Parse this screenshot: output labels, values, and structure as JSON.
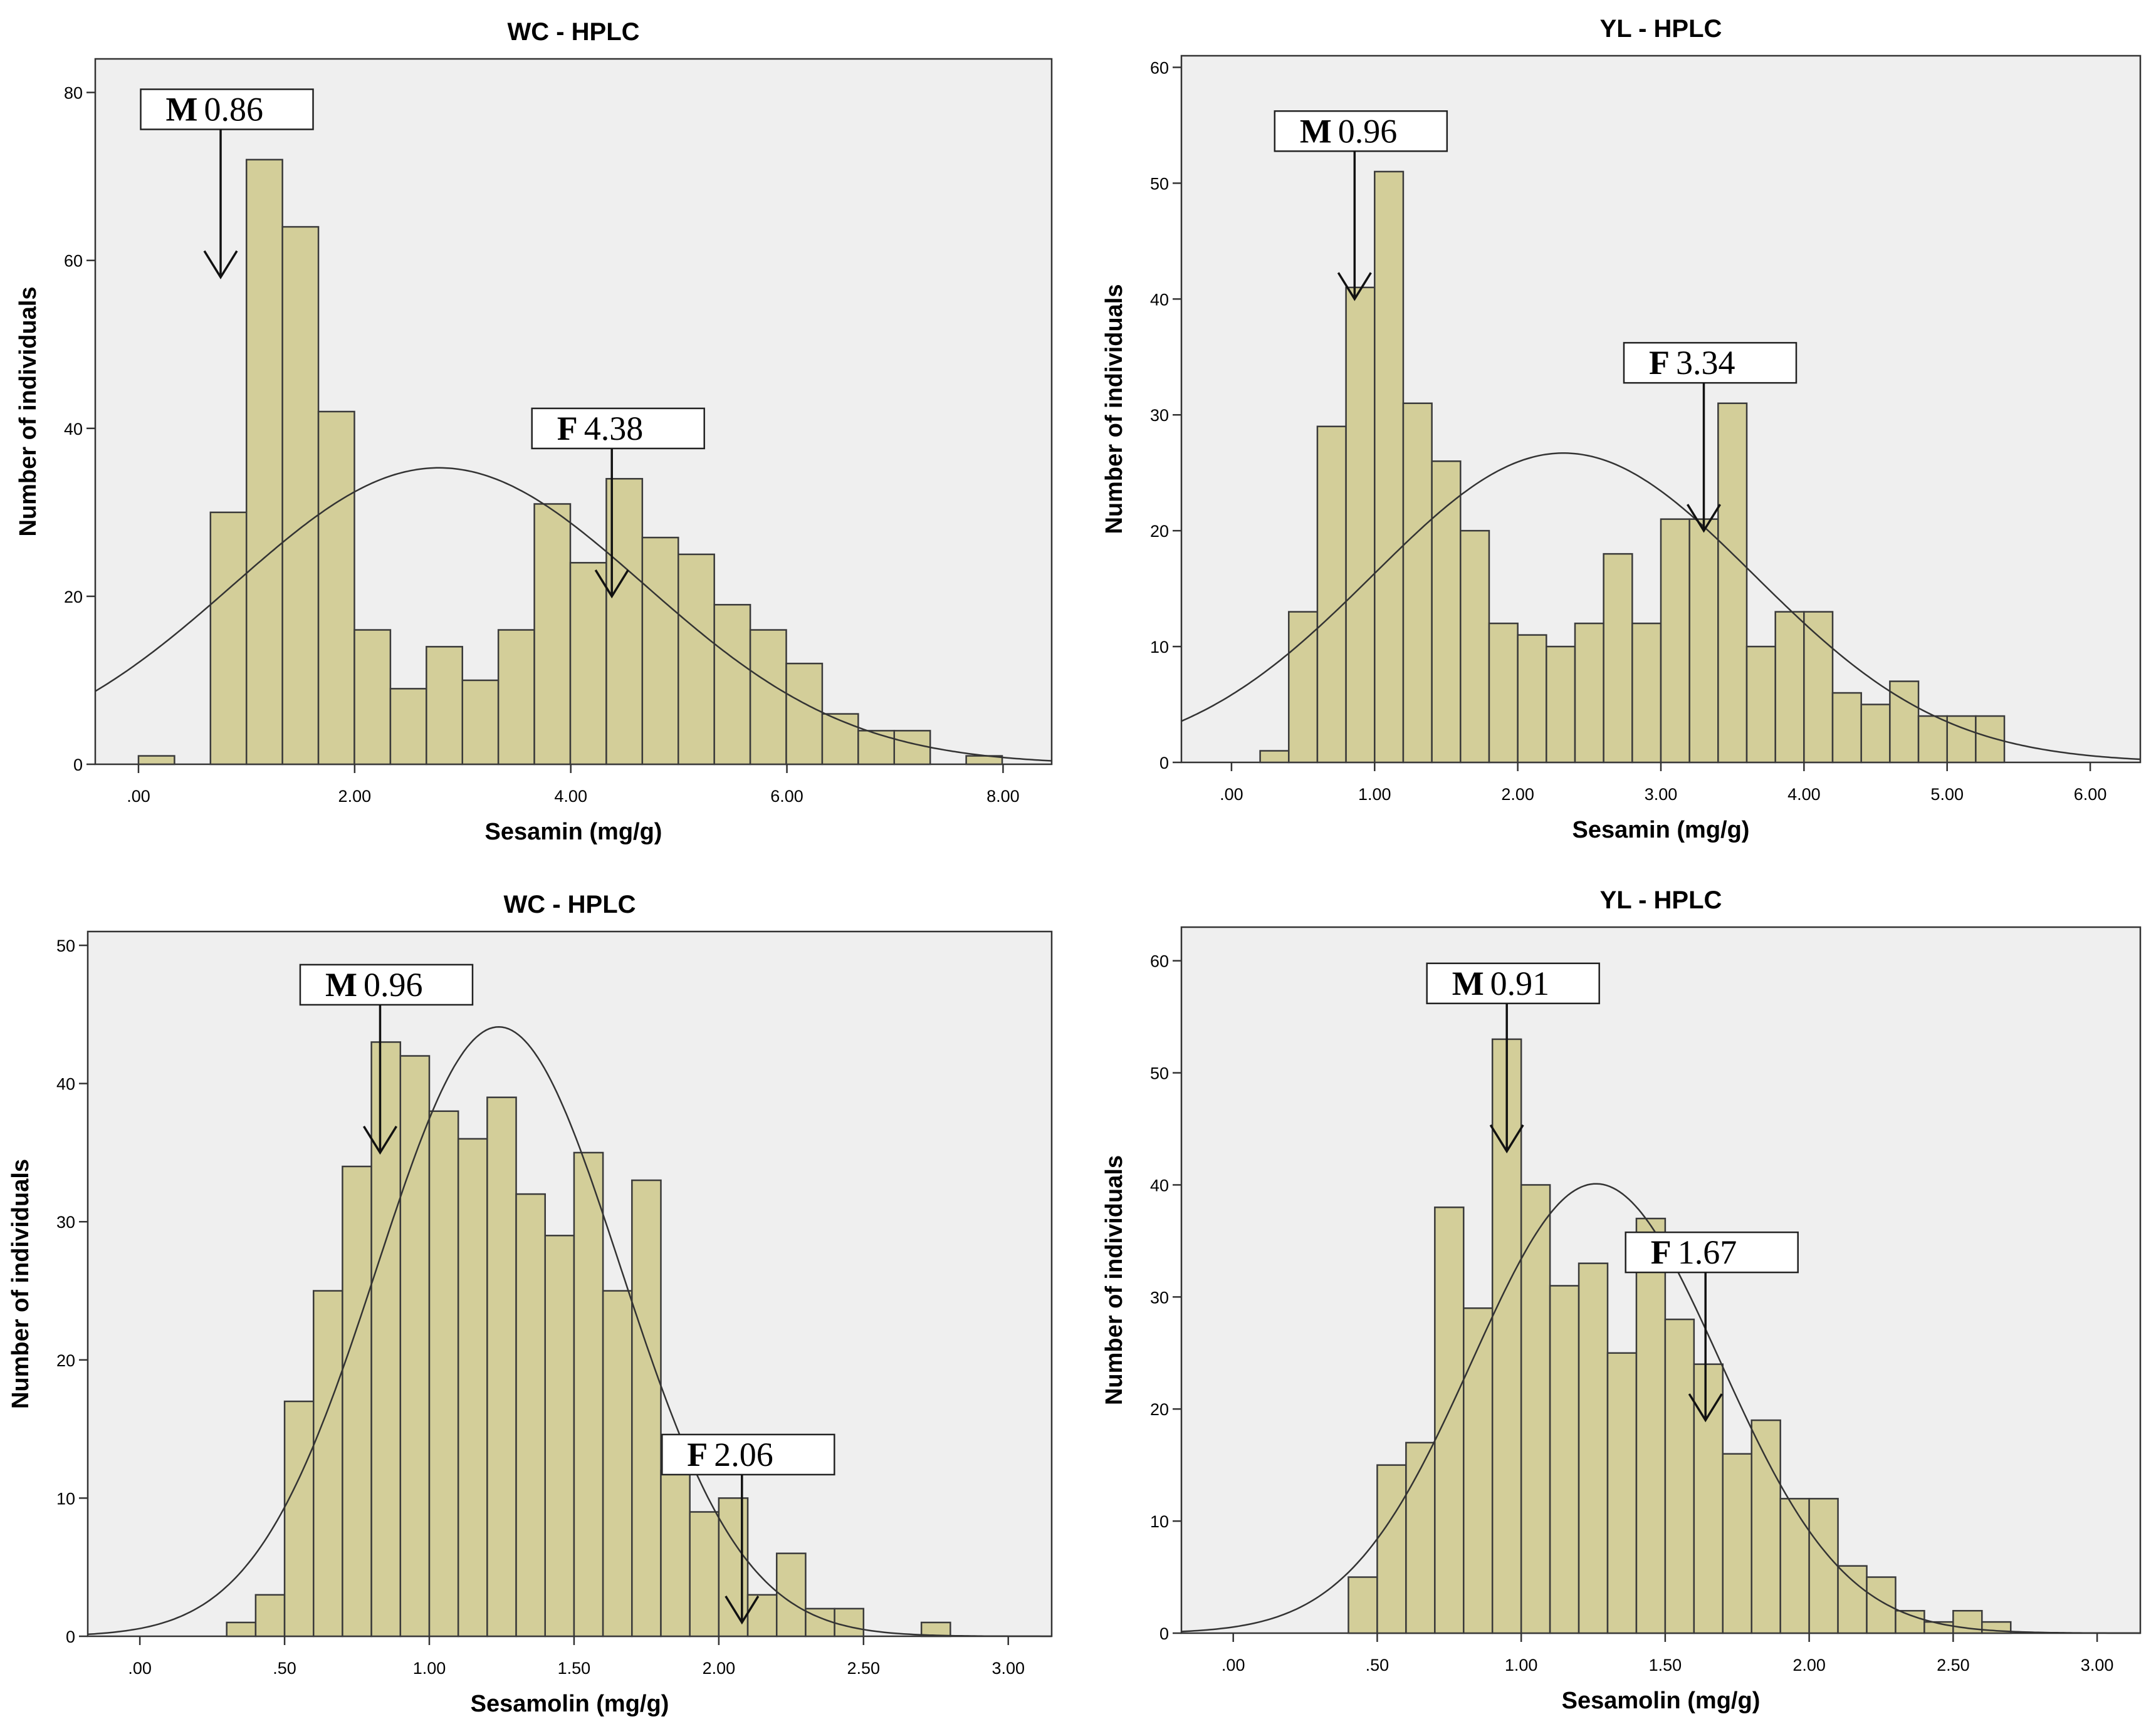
{
  "chart_data": [
    {
      "type": "bar",
      "subtype": "histogram_with_normal_curve",
      "title": "WC - HPLC",
      "xlabel": "Sesamin (mg/g)",
      "ylabel": "Number of individuals",
      "xlim": [
        -0.4,
        8.45
      ],
      "ylim": [
        0,
        84
      ],
      "xticks": [
        0,
        2,
        4,
        6,
        8
      ],
      "xtick_labels": [
        ".00",
        "2.00",
        "4.00",
        "6.00",
        "8.00"
      ],
      "yticks": [
        0,
        20,
        40,
        60,
        80
      ],
      "ytick_labels": [
        "0",
        "20",
        "40",
        "60",
        "80"
      ],
      "bin_start": 0.0,
      "bin_width": 0.333,
      "values": [
        1,
        0,
        30,
        72,
        64,
        42,
        16,
        9,
        14,
        10,
        16,
        31,
        24,
        34,
        27,
        25,
        19,
        16,
        12,
        6,
        4,
        4,
        0,
        1
      ],
      "normal_curve": {
        "mean": 2.78,
        "sd": 1.9,
        "peak": 35.3
      },
      "annotations": [
        {
          "letter": "M",
          "value": "0.86",
          "arrow_x": 0.76,
          "arrow_y": 58
        },
        {
          "letter": "F",
          "value": "4.38",
          "arrow_x": 4.38,
          "arrow_y": 20
        }
      ]
    },
    {
      "type": "bar",
      "subtype": "histogram_with_normal_curve",
      "title": "YL - HPLC",
      "xlabel": "Sesamin (mg/g)",
      "ylabel": "Number of individuals",
      "xlim": [
        -0.35,
        6.35
      ],
      "ylim": [
        0,
        61
      ],
      "xticks": [
        0,
        1,
        2,
        3,
        4,
        5,
        6
      ],
      "xtick_labels": [
        ".00",
        "1.00",
        "2.00",
        "3.00",
        "4.00",
        "5.00",
        "6.00"
      ],
      "yticks": [
        0,
        10,
        20,
        30,
        40,
        50,
        60
      ],
      "ytick_labels": [
        "0",
        "10",
        "20",
        "30",
        "40",
        "50",
        "60"
      ],
      "bin_start": 0.2,
      "bin_width": 0.2,
      "values": [
        1,
        13,
        29,
        41,
        51,
        31,
        26,
        20,
        12,
        11,
        10,
        12,
        18,
        12,
        21,
        21,
        31,
        10,
        13,
        13,
        6,
        5,
        7,
        4,
        4,
        4
      ],
      "normal_curve": {
        "mean": 2.32,
        "sd": 1.33,
        "peak": 26.7
      },
      "annotations": [
        {
          "letter": "M",
          "value": "0.96",
          "arrow_x": 0.86,
          "arrow_y": 40
        },
        {
          "letter": "F",
          "value": "3.34",
          "arrow_x": 3.3,
          "arrow_y": 20
        }
      ]
    },
    {
      "type": "bar",
      "subtype": "histogram_with_normal_curve",
      "title": "WC - HPLC",
      "xlabel": "Sesamolin (mg/g)",
      "ylabel": "Number of individuals",
      "xlim": [
        -0.18,
        3.15
      ],
      "ylim": [
        0,
        51
      ],
      "xticks": [
        0,
        0.5,
        1,
        1.5,
        2,
        2.5,
        3
      ],
      "xtick_labels": [
        ".00",
        ".50",
        "1.00",
        "1.50",
        "2.00",
        "2.50",
        "3.00"
      ],
      "yticks": [
        0,
        10,
        20,
        30,
        40,
        50
      ],
      "ytick_labels": [
        "0",
        "10",
        "20",
        "30",
        "40",
        "50"
      ],
      "bin_start": 0.3,
      "bin_width": 0.1,
      "values": [
        1,
        3,
        17,
        25,
        34,
        43,
        42,
        38,
        36,
        39,
        32,
        29,
        35,
        25,
        33,
        12,
        9,
        10,
        3,
        6,
        2,
        2,
        0,
        0,
        1
      ],
      "normal_curve": {
        "mean": 1.24,
        "sd": 0.42,
        "peak": 44.1
      },
      "annotations": [
        {
          "letter": "M",
          "value": "0.96",
          "arrow_x": 0.83,
          "arrow_y": 35
        },
        {
          "letter": "F",
          "value": "2.06",
          "arrow_x": 2.08,
          "arrow_y": 1
        }
      ]
    },
    {
      "type": "bar",
      "subtype": "histogram_with_normal_curve",
      "title": "YL - HPLC",
      "xlabel": "Sesamolin (mg/g)",
      "ylabel": "Number of individuals",
      "xlim": [
        -0.18,
        3.15
      ],
      "ylim": [
        0,
        63
      ],
      "xticks": [
        0,
        0.5,
        1,
        1.5,
        2,
        2.5,
        3
      ],
      "xtick_labels": [
        ".00",
        ".50",
        "1.00",
        "1.50",
        "2.00",
        "2.50",
        "3.00"
      ],
      "yticks": [
        0,
        10,
        20,
        30,
        40,
        50,
        60
      ],
      "ytick_labels": [
        "0",
        "10",
        "20",
        "30",
        "40",
        "50",
        "60"
      ],
      "bin_start": 0.4,
      "bin_width": 0.1,
      "values": [
        5,
        15,
        17,
        38,
        29,
        53,
        40,
        31,
        33,
        25,
        37,
        28,
        24,
        16,
        19,
        12,
        12,
        6,
        5,
        2,
        1,
        2,
        1
      ],
      "normal_curve": {
        "mean": 1.26,
        "sd": 0.43,
        "peak": 40.1
      },
      "annotations": [
        {
          "letter": "M",
          "value": "0.91",
          "arrow_x": 0.95,
          "arrow_y": 43
        },
        {
          "letter": "F",
          "value": "1.67",
          "arrow_x": 1.64,
          "arrow_y": 19
        }
      ]
    }
  ],
  "colors": {
    "plot_background": "#efefef",
    "bar_fill": "#d3ce99",
    "bar_edge": "#3a3a3a",
    "curve": "#333333",
    "axis": "#333333"
  }
}
